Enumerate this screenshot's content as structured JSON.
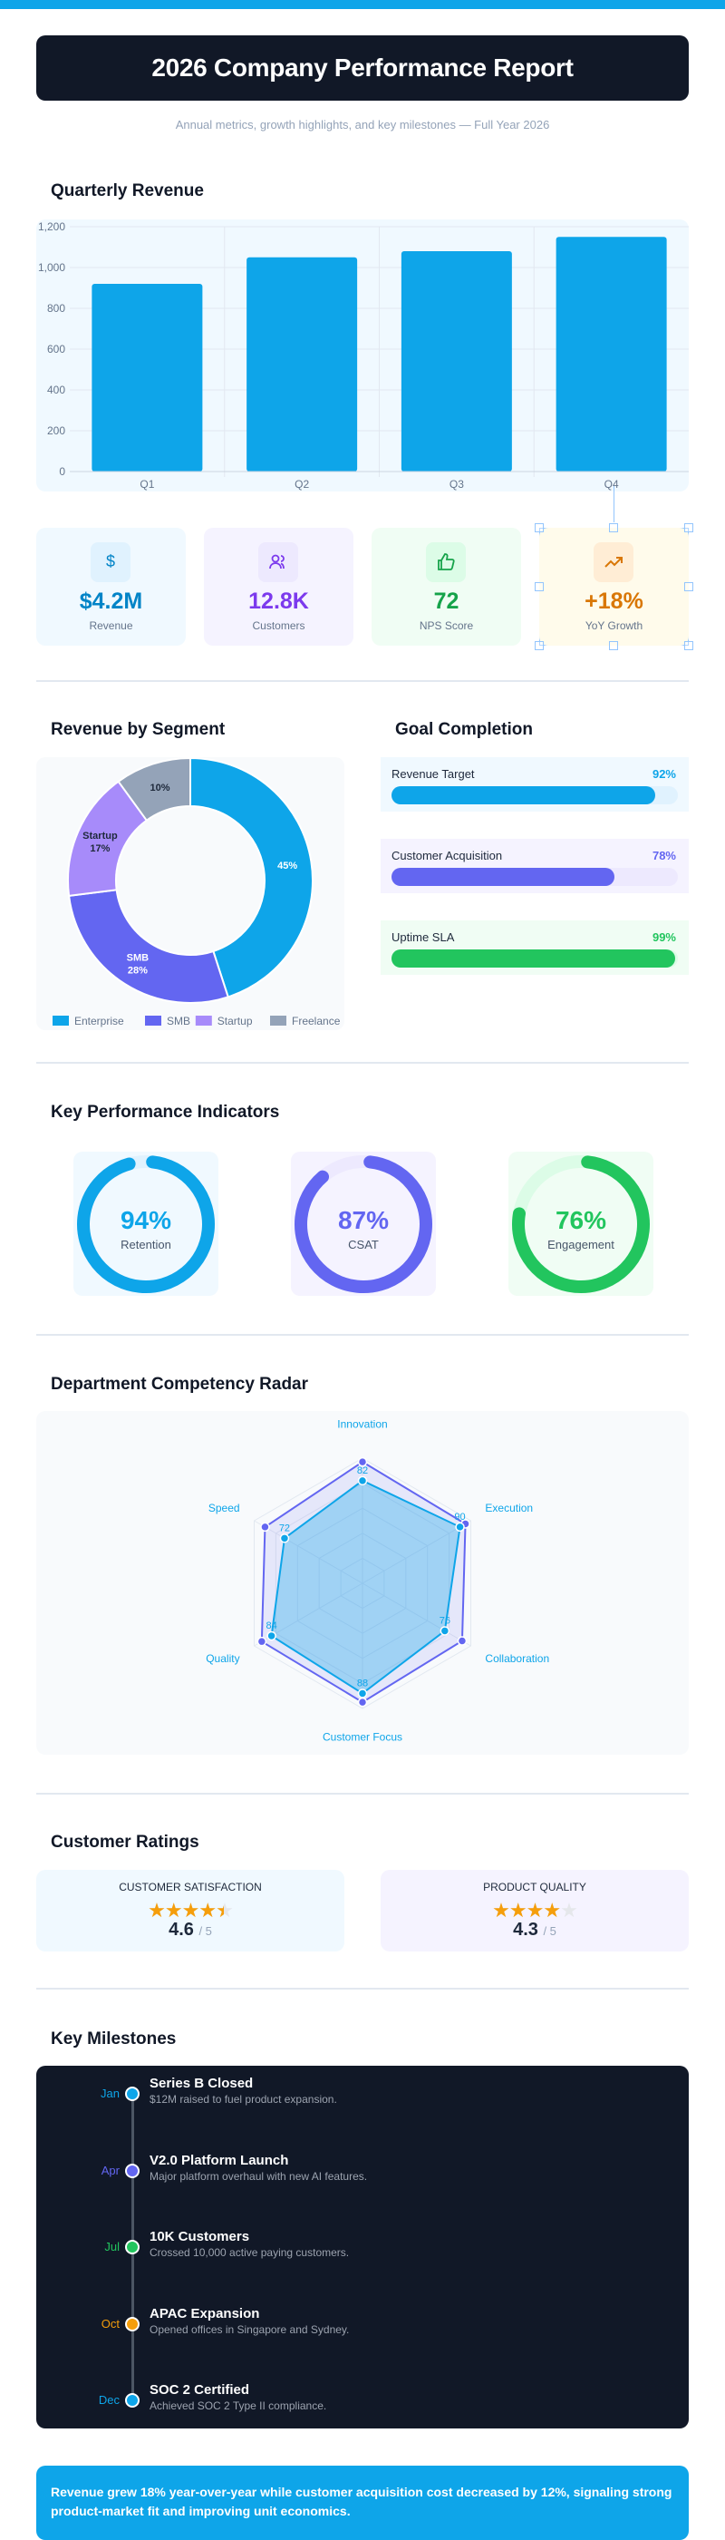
{
  "header": {
    "title": "2026 Company Performance Report",
    "subtitle": "Annual metrics, growth highlights, and key milestones — Full Year 2026"
  },
  "sections": {
    "quarterly": "Quarterly Revenue",
    "segment": "Revenue by Segment",
    "goals": "Goal Completion",
    "kpi": "Key Performance Indicators",
    "radar": "Department Competency Radar",
    "ratings": "Customer Ratings",
    "milestones": "Key Milestones"
  },
  "chart_data": [
    {
      "type": "bar",
      "categories": [
        "Q1",
        "Q2",
        "Q3",
        "Q4"
      ],
      "values": [
        920,
        1050,
        1080,
        1150
      ],
      "ylim": [
        0,
        1200
      ],
      "yticks": [
        "0",
        "200",
        "400",
        "600",
        "800",
        "1,000",
        "1,200"
      ],
      "grid": true,
      "color": "#0ea5e9"
    },
    {
      "type": "pie",
      "donut": true,
      "categories": [
        "Enterprise",
        "SMB",
        "Startup",
        "Freelance"
      ],
      "values": [
        45,
        28,
        17,
        10
      ],
      "labels": [
        "45%",
        "SMB 28%",
        "Startup 17%",
        "10%"
      ],
      "colors": [
        "#0ea5e9",
        "#6366f1",
        "#a78bfa",
        "#94a3b8"
      ],
      "legend": "bottom"
    },
    {
      "type": "radar",
      "axes": [
        "Innovation",
        "Execution",
        "Collaboration",
        "Customer Focus",
        "Quality",
        "Speed"
      ],
      "range": [
        0,
        100
      ],
      "series": [
        {
          "values": [
            97,
            95,
            92,
            95,
            93,
            90
          ],
          "color": "#6366f1"
        },
        {
          "values": [
            82,
            90,
            76,
            88,
            84,
            72
          ],
          "color": "#0ea5e9",
          "labels": [
            "82",
            "90",
            "76",
            "88",
            "84",
            "72"
          ]
        }
      ]
    }
  ],
  "stats": [
    {
      "icon": "dollar-icon",
      "value": "$4.2M",
      "label": "Revenue",
      "color": "#0284c7",
      "bg": "#f0f9ff",
      "ibg": "#e0f2fe"
    },
    {
      "icon": "users-icon",
      "value": "12.8K",
      "label": "Customers",
      "color": "#7c3aed",
      "bg": "#f5f3ff",
      "ibg": "#ede9fe"
    },
    {
      "icon": "thumbs-up-icon",
      "value": "72",
      "label": "NPS Score",
      "color": "#16a34a",
      "bg": "#f0fdf4",
      "ibg": "#dcfce7"
    },
    {
      "icon": "trending-up-icon",
      "value": "+18%",
      "label": "YoY Growth",
      "color": "#d97706",
      "bg": "#fffbeb",
      "ibg": "#ffedd5"
    }
  ],
  "goals": [
    {
      "label": "Revenue Target",
      "pct": 92,
      "pct_label": "92%",
      "color": "#0ea5e9",
      "bg": "#f0f9ff",
      "track": "#e0f2fe"
    },
    {
      "label": "Customer Acquisition",
      "pct": 78,
      "pct_label": "78%",
      "color": "#6366f1",
      "bg": "#f5f3ff",
      "track": "#ede9fe"
    },
    {
      "label": "Uptime SLA",
      "pct": 99,
      "pct_label": "99%",
      "color": "#22c55e",
      "bg": "#f0fdf4",
      "track": "#dcfce7"
    }
  ],
  "kpis": [
    {
      "pct": 94,
      "value": "94%",
      "label": "Retention",
      "color": "#0ea5e9",
      "bg": "#f0f9ff",
      "track": "#e0f2fe"
    },
    {
      "pct": 87,
      "value": "87%",
      "label": "CSAT",
      "color": "#6366f1",
      "bg": "#f5f3ff",
      "track": "#ede9fe"
    },
    {
      "pct": 76,
      "value": "76%",
      "label": "Engagement",
      "color": "#22c55e",
      "bg": "#f0fdf4",
      "track": "#dcfce7"
    }
  ],
  "ratings": [
    {
      "title": "CUSTOMER SATISFACTION",
      "value": 4.6,
      "value_label": "4.6",
      "max": "/ 5",
      "bg": "#f0f9ff"
    },
    {
      "title": "PRODUCT QUALITY",
      "value": 4.3,
      "value_label": "4.3",
      "max": "/ 5",
      "bg": "#f5f3ff"
    }
  ],
  "milestones": [
    {
      "month": "Jan",
      "title": "Series B Closed",
      "desc": "$12M raised to fuel product expansion.",
      "color": "#0ea5e9"
    },
    {
      "month": "Apr",
      "title": "V2.0 Platform Launch",
      "desc": "Major platform overhaul with new AI features.",
      "color": "#6366f1"
    },
    {
      "month": "Jul",
      "title": "10K Customers",
      "desc": "Crossed 10,000 active paying customers.",
      "color": "#22c55e"
    },
    {
      "month": "Oct",
      "title": "APAC Expansion",
      "desc": "Opened offices in Singapore and Sydney.",
      "color": "#f59e0b"
    },
    {
      "month": "Dec",
      "title": "SOC 2 Certified",
      "desc": "Achieved SOC 2 Type II compliance.",
      "color": "#0ea5e9"
    }
  ],
  "summary": "Revenue grew 18% year-over-year while customer acquisition cost decreased by 12%, signaling strong product-market fit and improving unit economics."
}
